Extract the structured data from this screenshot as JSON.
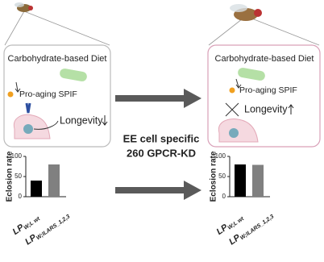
{
  "left_panel": {
    "title": "Carbohydrate-based Diet",
    "signal": "Pro-aging SPIF",
    "outcome": "Longevity"
  },
  "right_panel": {
    "title": "Carbohydrate-based Diet",
    "signal": "Pro-aging SPIF",
    "outcome": "Longevity"
  },
  "center_label": {
    "line1": "EE cell specific",
    "line2": "260 GPCR-KD"
  },
  "charts": [
    {
      "type": "bar",
      "ylabel": "Eclosion rate",
      "categories": [
        "LP",
        "LP"
      ],
      "category_subscripts": [
        "W;L wt",
        "W;ILARS_1,2,3"
      ],
      "values": [
        40,
        80
      ],
      "colors": [
        "#000000",
        "#808080"
      ],
      "ylim": [
        0,
        100
      ],
      "yticks": [
        0,
        50,
        100
      ]
    },
    {
      "type": "bar",
      "ylabel": "Eclosion rate",
      "categories": [
        "LP",
        "LP"
      ],
      "category_subscripts": [
        "W;L wt",
        "W;ILARS_1,2,3"
      ],
      "values": [
        80,
        79
      ],
      "colors": [
        "#000000",
        "#808080"
      ],
      "ylim": [
        0,
        100
      ],
      "yticks": [
        0,
        50,
        100
      ]
    }
  ]
}
